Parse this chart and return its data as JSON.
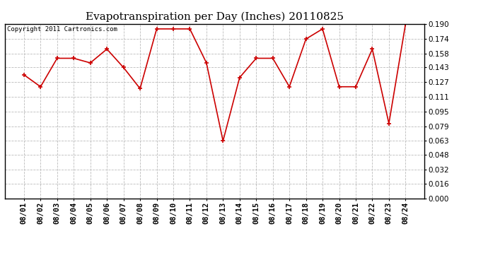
{
  "title": "Evapotranspiration per Day (Inches) 20110825",
  "copyright_text": "Copyright 2011 Cartronics.com",
  "dates": [
    "08/01",
    "08/02",
    "08/03",
    "08/04",
    "08/05",
    "08/06",
    "08/07",
    "08/08",
    "08/09",
    "08/10",
    "08/11",
    "08/12",
    "08/13",
    "08/14",
    "08/15",
    "08/16",
    "08/17",
    "08/18",
    "08/19",
    "08/20",
    "08/21",
    "08/22",
    "08/23",
    "08/24"
  ],
  "values": [
    0.135,
    0.122,
    0.153,
    0.153,
    0.148,
    0.163,
    0.143,
    0.12,
    0.185,
    0.185,
    0.185,
    0.148,
    0.063,
    0.132,
    0.153,
    0.153,
    0.122,
    0.174,
    0.185,
    0.122,
    0.122,
    0.163,
    0.082,
    0.19
  ],
  "line_color": "#cc0000",
  "marker": "+",
  "marker_size": 5,
  "marker_lw": 1.2,
  "line_width": 1.2,
  "background_color": "#ffffff",
  "plot_bg_color": "#ffffff",
  "grid_color": "#bbbbbb",
  "ylim": [
    0.0,
    0.1905
  ],
  "yticks": [
    0.0,
    0.016,
    0.032,
    0.048,
    0.063,
    0.079,
    0.095,
    0.111,
    0.127,
    0.143,
    0.158,
    0.174,
    0.19
  ],
  "title_fontsize": 11,
  "tick_fontsize": 7.5,
  "copyright_fontsize": 6.5
}
